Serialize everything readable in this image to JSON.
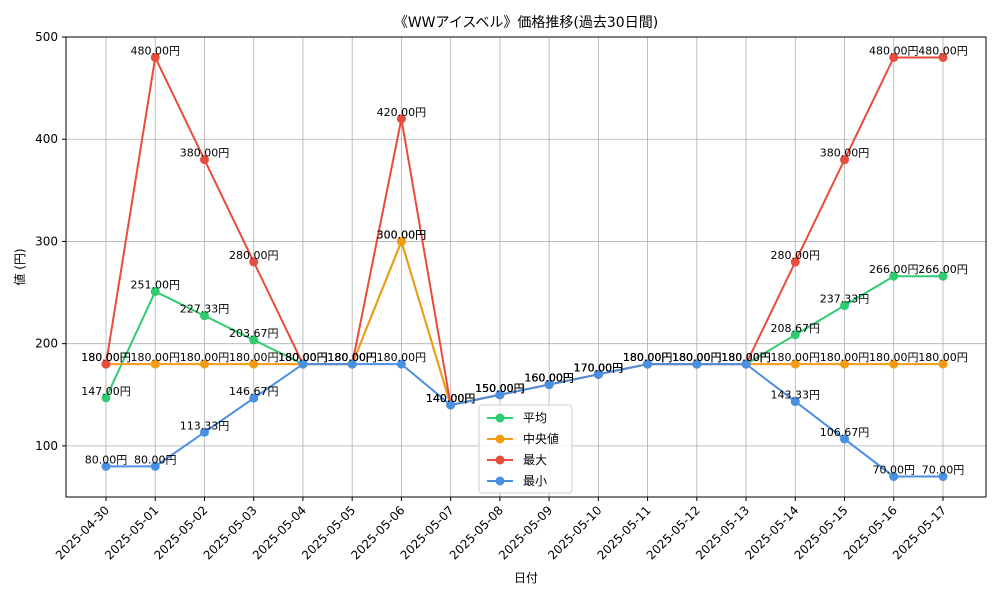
{
  "chart_data": {
    "type": "line",
    "title": "《WWアイスベル》価格推移(過去30日間)",
    "xlabel": "日付",
    "ylabel": "値 (円)",
    "ylim": [
      50,
      500
    ],
    "yticks": [
      100,
      200,
      300,
      400,
      500
    ],
    "grid": true,
    "legend_position": "bottom-center",
    "categories": [
      "2025-04-30",
      "2025-05-01",
      "2025-05-02",
      "2025-05-03",
      "2025-05-04",
      "2025-05-05",
      "2025-05-06",
      "2025-05-07",
      "2025-05-08",
      "2025-05-09",
      "2025-05-10",
      "2025-05-11",
      "2025-05-12",
      "2025-05-13",
      "2025-05-14",
      "2025-05-15",
      "2025-05-16",
      "2025-05-17"
    ],
    "series": [
      {
        "name": "平均",
        "color": "#2ecc71",
        "values": [
          147.0,
          251.0,
          227.33,
          203.67,
          180.0,
          180.0,
          300.0,
          140.0,
          150.0,
          160.0,
          170.0,
          180.0,
          180.0,
          180.0,
          208.67,
          237.33,
          266.0,
          266.0
        ],
        "labels": [
          "147.00円",
          "251.00円",
          "227.33円",
          "203.67円",
          "180.00円",
          "180.00円",
          "300.00円",
          "140.00円",
          "150.00円",
          "160.00円",
          "170.00円",
          "180.00円",
          "180.00円",
          "180.00円",
          "208.67円",
          "237.33円",
          "266.00円",
          "266.00円"
        ]
      },
      {
        "name": "中央値",
        "color": "#f39c12",
        "values": [
          180.0,
          180.0,
          180.0,
          180.0,
          180.0,
          180.0,
          300.0,
          140.0,
          150.0,
          160.0,
          170.0,
          180.0,
          180.0,
          180.0,
          180.0,
          180.0,
          180.0,
          180.0
        ],
        "labels": [
          "180.00円",
          "180.00円",
          "180.00円",
          "180.00円",
          "180.00円",
          "180.00円",
          "300.00円",
          "140.00円",
          "150.00円",
          "160.00円",
          "170.00円",
          "180.00円",
          "180.00円",
          "180.00円",
          "180.00円",
          "180.00円",
          "180.00円",
          "180.00円"
        ]
      },
      {
        "name": "最大",
        "color": "#e74c3c",
        "values": [
          180.0,
          480.0,
          380.0,
          280.0,
          180.0,
          180.0,
          420.0,
          140.0,
          150.0,
          160.0,
          170.0,
          180.0,
          180.0,
          180.0,
          280.0,
          380.0,
          480.0,
          480.0
        ],
        "labels": [
          "180.00円",
          "480.00円",
          "380.00円",
          "280.00円",
          "180.00円",
          "180.00円",
          "420.00円",
          "140.00円",
          "150.00円",
          "160.00円",
          "170.00円",
          "180.00円",
          "180.00円",
          "180.00円",
          "280.00円",
          "380.00円",
          "480.00円",
          "480.00円"
        ]
      },
      {
        "name": "最小",
        "color": "#4a90e2",
        "values": [
          80.0,
          80.0,
          113.33,
          146.67,
          180.0,
          180.0,
          180.0,
          140.0,
          150.0,
          160.0,
          170.0,
          180.0,
          180.0,
          180.0,
          143.33,
          106.67,
          70.0,
          70.0
        ],
        "labels": [
          "80.00円",
          "80.00円",
          "113.33円",
          "146.67円",
          "180.00円",
          "180.00円",
          "180.00円",
          "140.00円",
          "150.00円",
          "160.00円",
          "170.00円",
          "180.00円",
          "180.00円",
          "180.00円",
          "143.33円",
          "106.67円",
          "70.00円",
          "70.00円"
        ]
      }
    ]
  }
}
